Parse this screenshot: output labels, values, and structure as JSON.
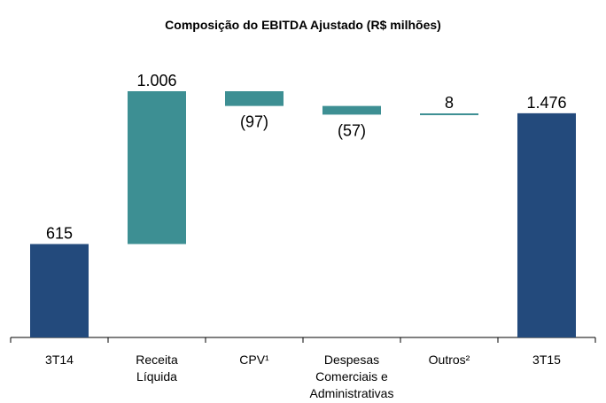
{
  "chart_data": {
    "type": "waterfall",
    "title": "Composição do EBITDA Ajustado (R$ milhões)",
    "categories": [
      "3T14",
      "Receita\nLíquida",
      "CPV¹",
      "Despesas\nComerciais e\nAdministrativas",
      "Outros²",
      "3T15"
    ],
    "values": [
      615,
      1006,
      -97,
      -57,
      8,
      1476
    ],
    "value_labels": [
      "615",
      "1.006",
      "(97)",
      "(57)",
      "8",
      "1.476"
    ],
    "colors": [
      "#234a7c",
      "#3d8f93",
      "#3d8f93",
      "#3d8f93",
      "#3d8f93",
      "#234a7c"
    ]
  }
}
